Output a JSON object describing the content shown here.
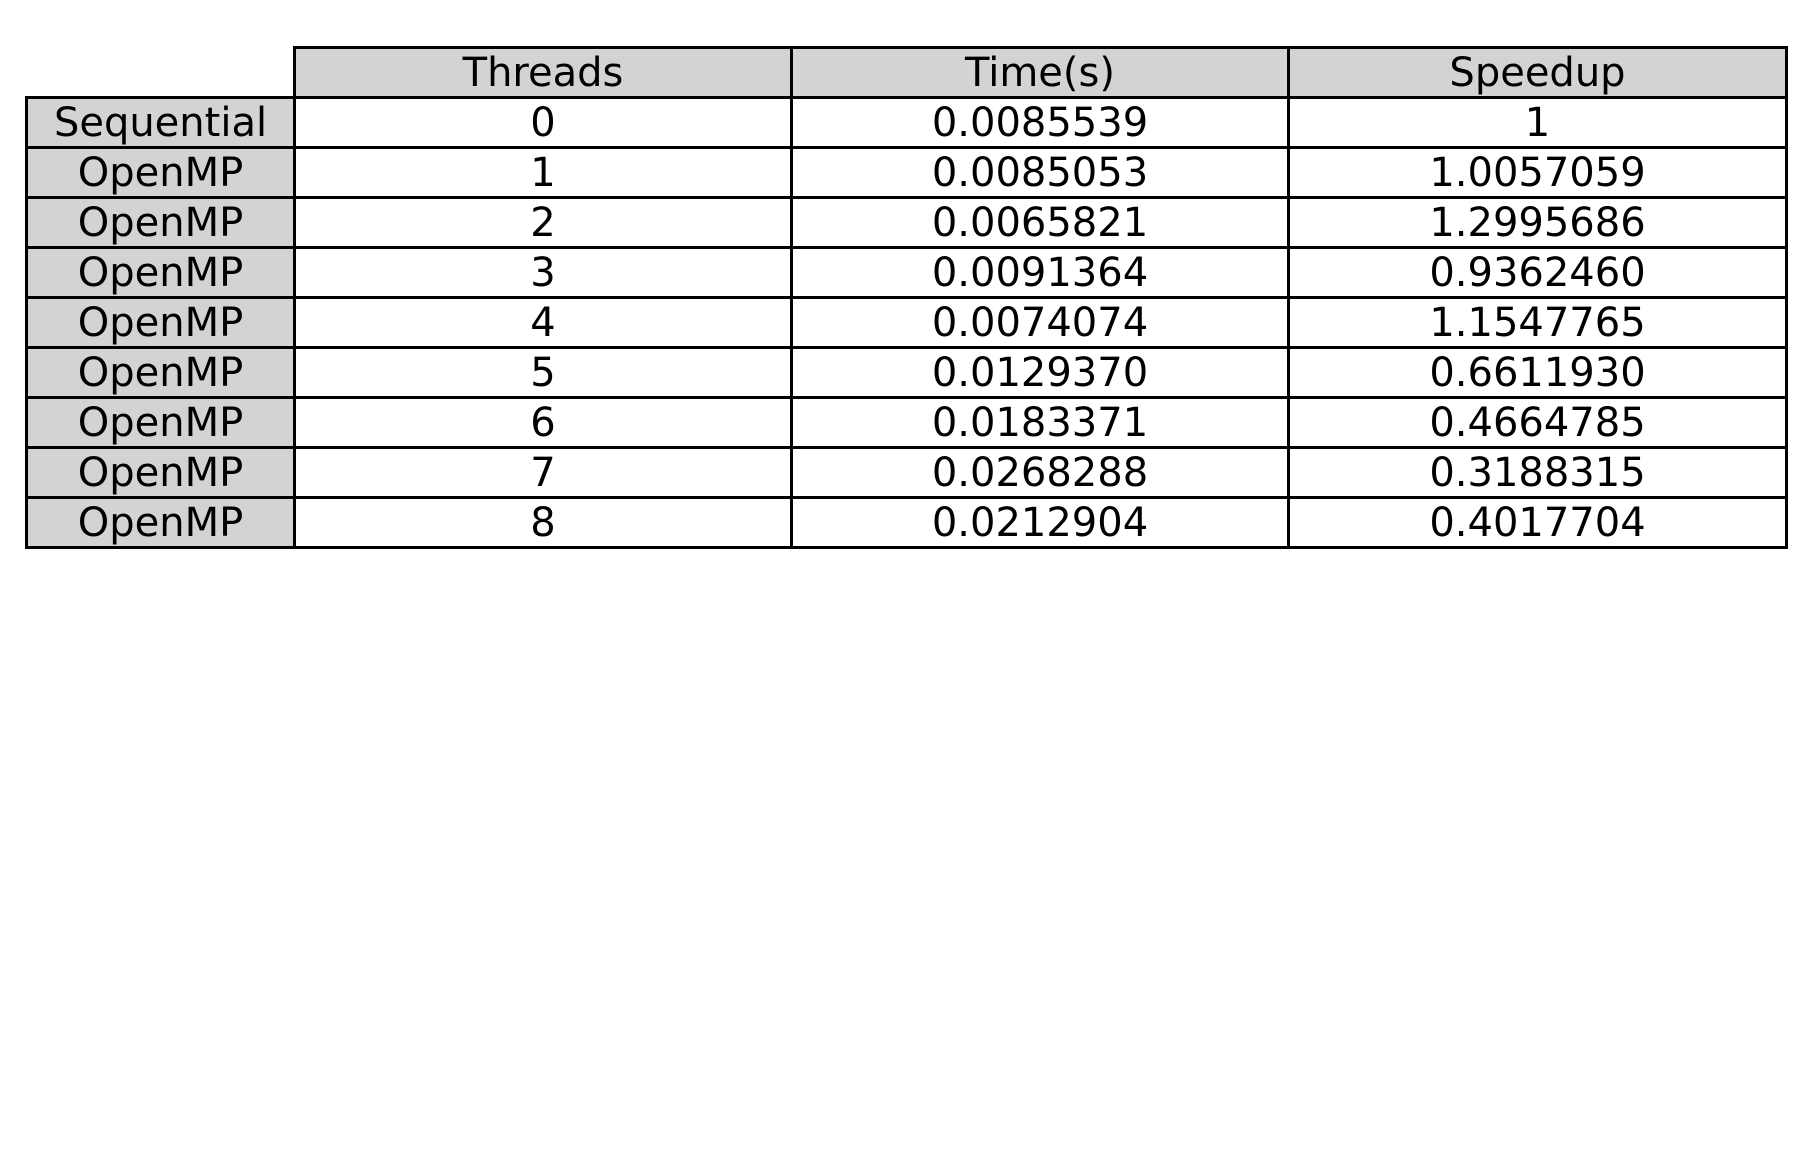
{
  "chart_data": {
    "type": "table",
    "columns": [
      "Threads",
      "Time(s)",
      "Speedup"
    ],
    "rows": [
      {
        "label": "Sequential",
        "cells": [
          "0",
          "0.0085539",
          "1"
        ]
      },
      {
        "label": "OpenMP",
        "cells": [
          "1",
          "0.0085053",
          "1.0057059"
        ]
      },
      {
        "label": "OpenMP",
        "cells": [
          "2",
          "0.0065821",
          "1.2995686"
        ]
      },
      {
        "label": "OpenMP",
        "cells": [
          "3",
          "0.0091364",
          "0.9362460"
        ]
      },
      {
        "label": "OpenMP",
        "cells": [
          "4",
          "0.0074074",
          "1.1547765"
        ]
      },
      {
        "label": "OpenMP",
        "cells": [
          "5",
          "0.0129370",
          "0.6611930"
        ]
      },
      {
        "label": "OpenMP",
        "cells": [
          "6",
          "0.0183371",
          "0.4664785"
        ]
      },
      {
        "label": "OpenMP",
        "cells": [
          "7",
          "0.0268288",
          "0.3188315"
        ]
      },
      {
        "label": "OpenMP",
        "cells": [
          "8",
          "0.0212904",
          "0.4017704"
        ]
      }
    ]
  },
  "colors": {
    "header_background": "#d3d3d3",
    "cell_background": "#ffffff",
    "border": "#000000"
  }
}
